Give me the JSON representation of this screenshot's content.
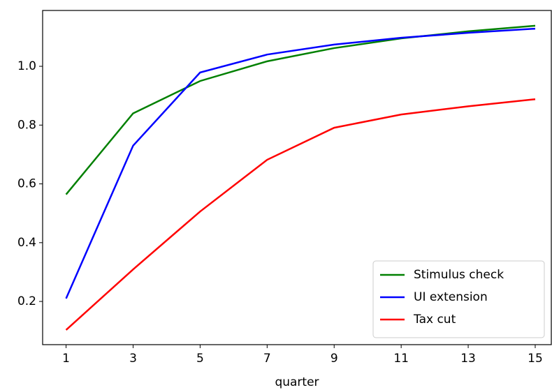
{
  "chart_data": {
    "type": "line",
    "x_label": "quarter",
    "x": [
      1,
      3,
      5,
      7,
      9,
      11,
      13,
      15
    ],
    "series": [
      {
        "name": "Stimulus check",
        "color": "#008000",
        "values": [
          0.564,
          0.84,
          0.95,
          1.017,
          1.062,
          1.095,
          1.119,
          1.138
        ]
      },
      {
        "name": "UI extension",
        "color": "#0000ff",
        "values": [
          0.21,
          0.73,
          0.979,
          1.04,
          1.074,
          1.097,
          1.114,
          1.128
        ]
      },
      {
        "name": "Tax cut",
        "color": "#ff0000",
        "values": [
          0.103,
          0.309,
          0.506,
          0.682,
          0.791,
          0.836,
          0.864,
          0.888
        ]
      }
    ],
    "xlim": [
      0.3,
      15.48
    ],
    "xticks": [
      1,
      3,
      5,
      7,
      9,
      11,
      13,
      15
    ],
    "ylim": [
      0.053,
      1.19
    ],
    "yticks": [
      0.2,
      0.4,
      0.6,
      0.8,
      {
        "value": 1,
        "label": "1.0"
      }
    ],
    "legend": "lower right"
  }
}
